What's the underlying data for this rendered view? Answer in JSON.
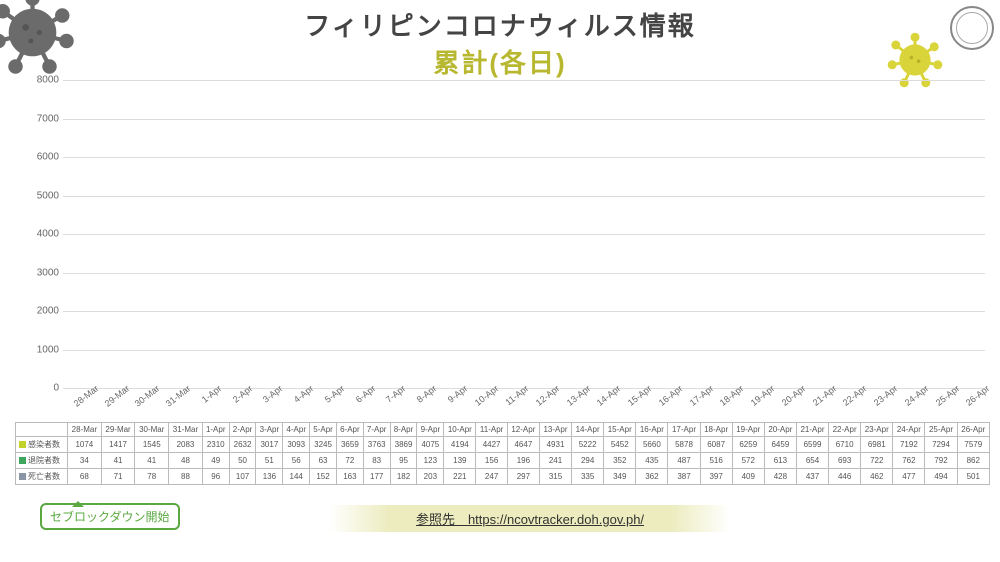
{
  "title_line1": "フィリピンコロナウィルス情報",
  "title_line2": "累計(各日)",
  "lockdown_label": "セブロックダウン開始",
  "reference_label": "参照先　https://ncovtracker.doh.gov.ph/",
  "chart": {
    "type": "bar",
    "ylim": [
      0,
      8000
    ],
    "ytick_step": 1000,
    "background_color": "#ffffff",
    "grid_color": "#dcdcdc",
    "axis_text_color": "#666666",
    "axis_fontsize": 10,
    "series": [
      {
        "key": "infected",
        "label": "感染者数",
        "color": "#c3d22b"
      },
      {
        "key": "recovered",
        "label": "退院者数",
        "color": "#3fa65d"
      },
      {
        "key": "deaths",
        "label": "死亡者数",
        "color": "#8a95a6"
      }
    ],
    "categories": [
      "28-Mar",
      "29-Mar",
      "30-Mar",
      "31-Mar",
      "1-Apr",
      "2-Apr",
      "3-Apr",
      "4-Apr",
      "5-Apr",
      "6-Apr",
      "7-Apr",
      "8-Apr",
      "9-Apr",
      "10-Apr",
      "11-Apr",
      "12-Apr",
      "13-Apr",
      "14-Apr",
      "15-Apr",
      "16-Apr",
      "17-Apr",
      "18-Apr",
      "19-Apr",
      "20-Apr",
      "21-Apr",
      "22-Apr",
      "23-Apr",
      "24-Apr",
      "25-Apr",
      "26-Apr"
    ],
    "data": {
      "infected": [
        1074,
        1417,
        1545,
        2083,
        2310,
        2632,
        3017,
        3093,
        3245,
        3659,
        3763,
        3869,
        4075,
        4194,
        4427,
        4647,
        4931,
        5222,
        5452,
        5660,
        5878,
        6087,
        6259,
        6459,
        6599,
        6710,
        6981,
        7192,
        7294,
        7579
      ],
      "recovered": [
        34,
        41,
        41,
        48,
        49,
        50,
        51,
        56,
        63,
        72,
        83,
        95,
        123,
        139,
        156,
        196,
        241,
        294,
        352,
        435,
        487,
        516,
        572,
        613,
        654,
        693,
        722,
        762,
        792,
        862
      ],
      "deaths": [
        68,
        71,
        78,
        88,
        96,
        107,
        136,
        144,
        152,
        163,
        177,
        182,
        203,
        221,
        247,
        297,
        315,
        335,
        349,
        362,
        387,
        397,
        409,
        428,
        437,
        446,
        462,
        477,
        494,
        501
      ]
    }
  }
}
